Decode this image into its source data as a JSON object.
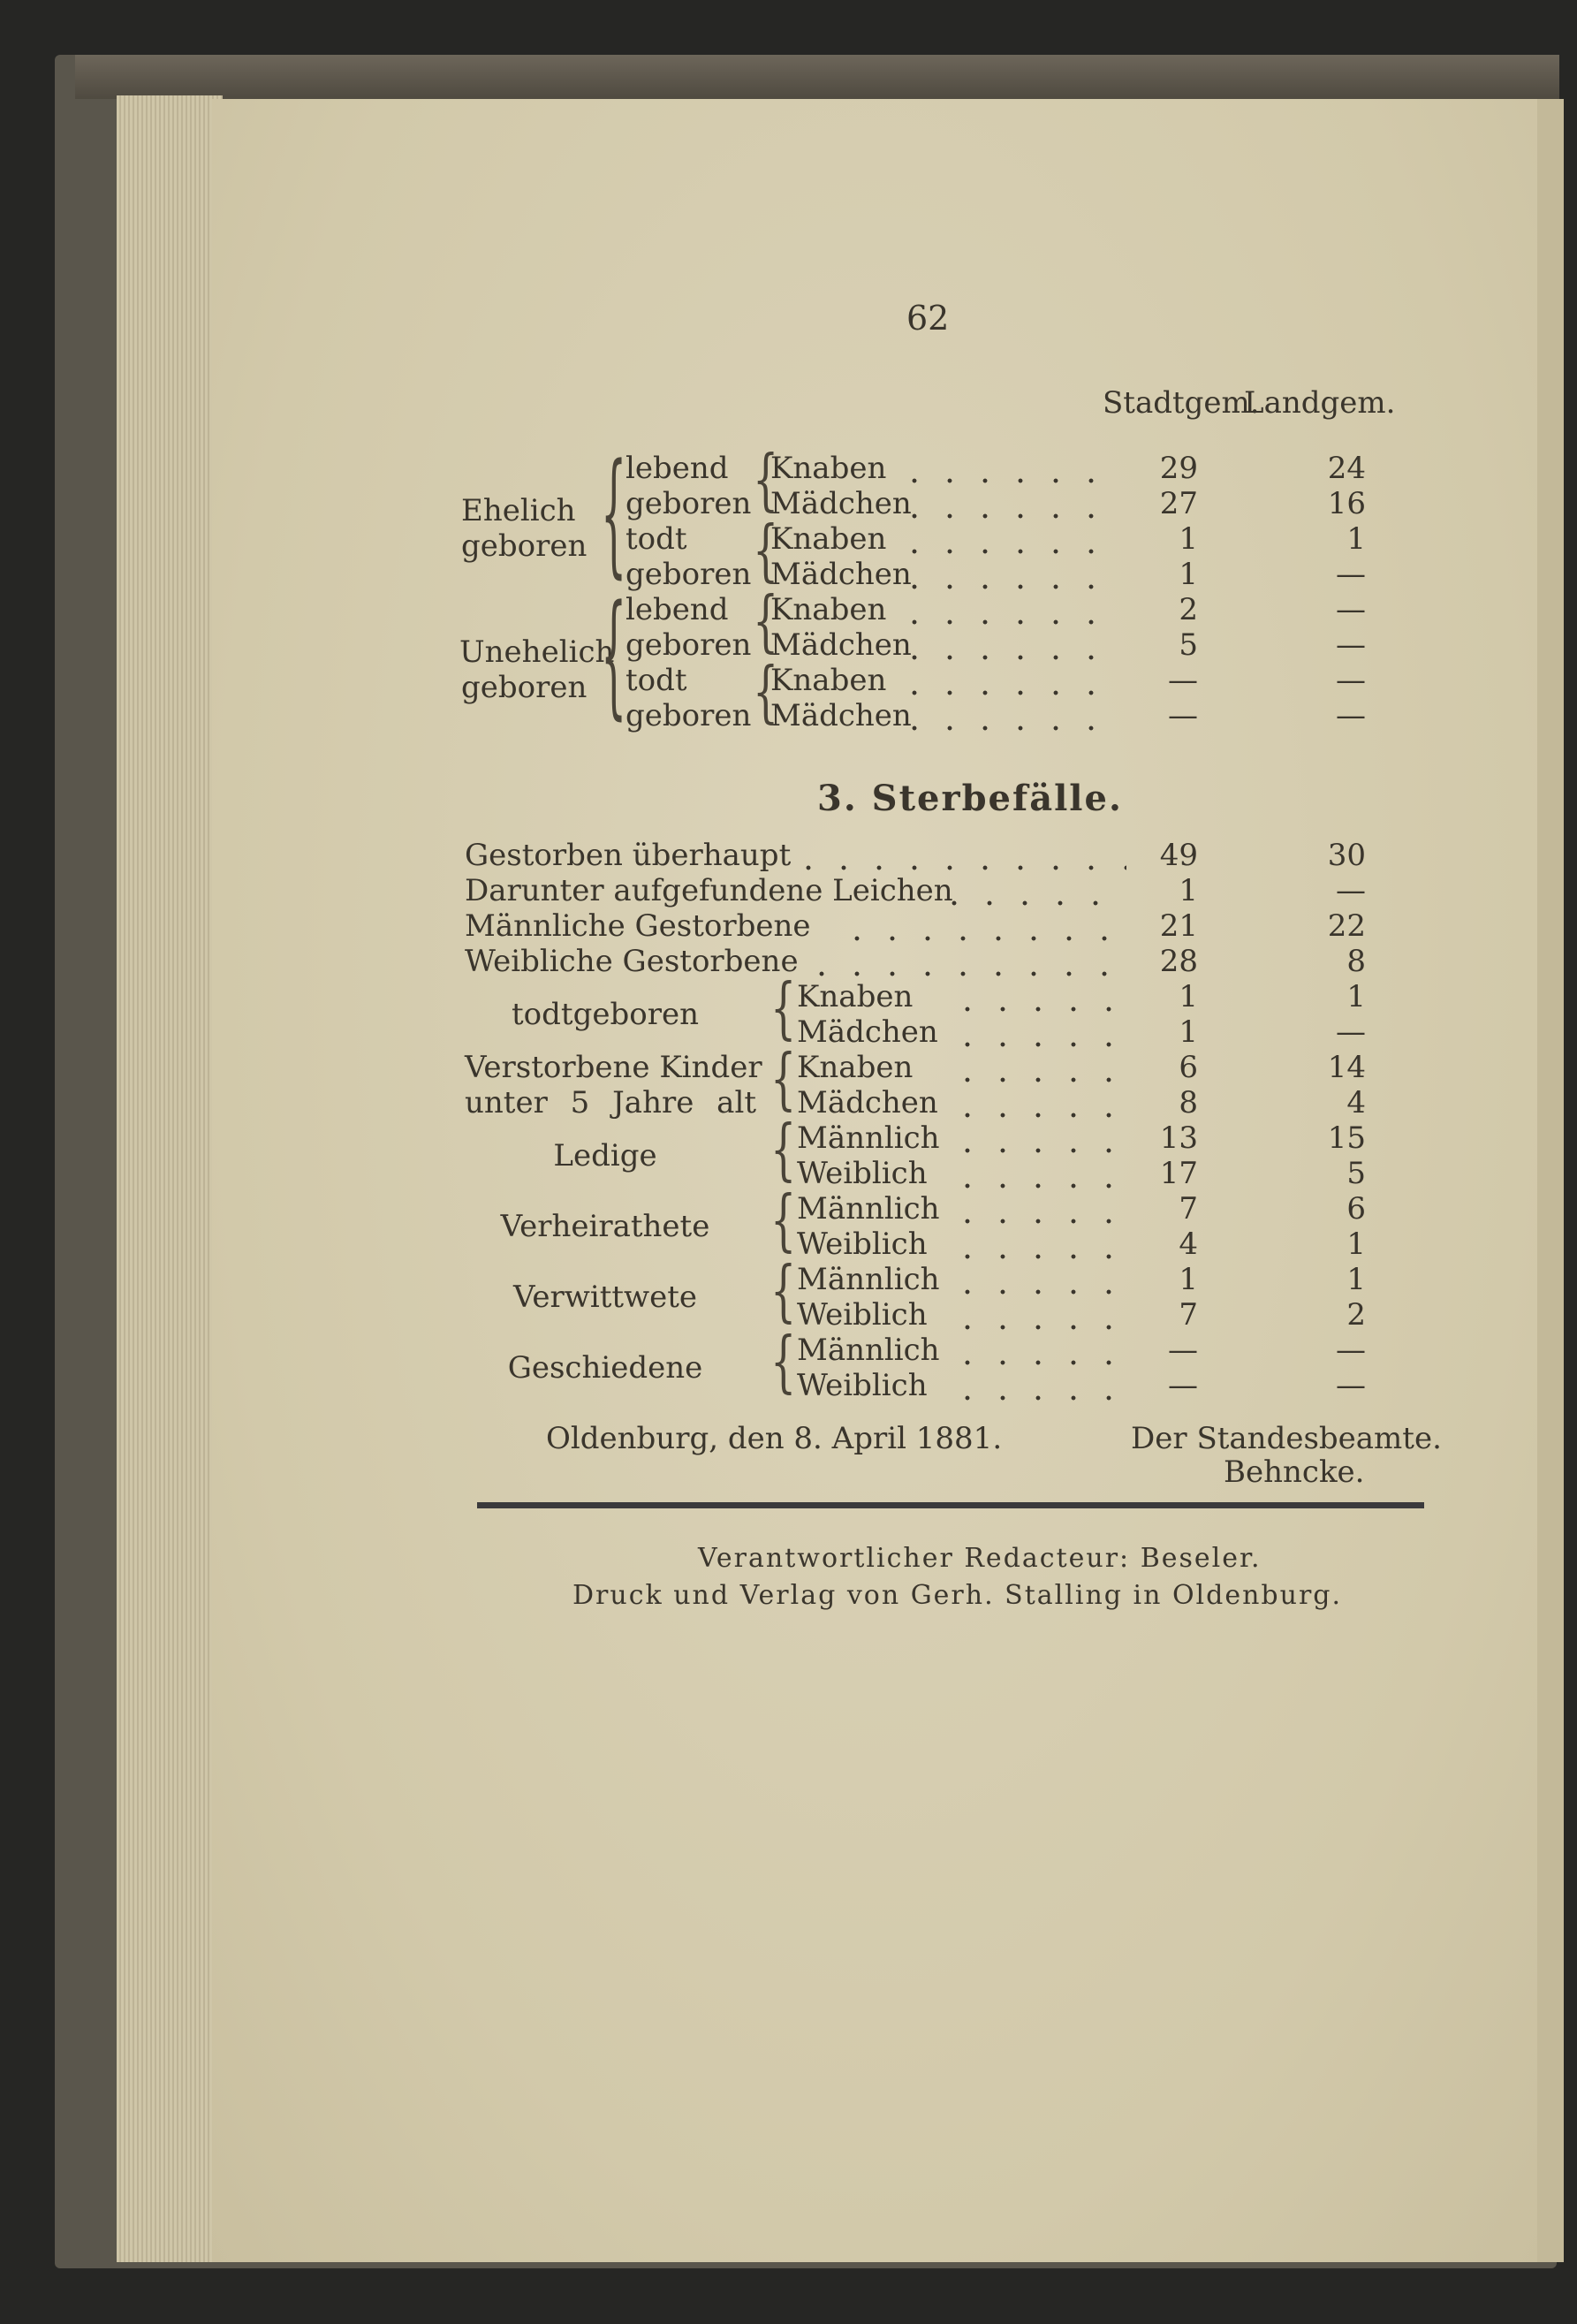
{
  "page_number": "62",
  "births": {
    "header": {
      "stadt": "Stadtgem.",
      "land": "Landgem."
    },
    "rows": [
      {
        "g1": "",
        "g2": "lebend",
        "label": "Knaben",
        "stadt": "29",
        "land": "24"
      },
      {
        "g1": "Ehelich",
        "g2": "geboren",
        "label": "Mädchen",
        "stadt": "27",
        "land": "16"
      },
      {
        "g1": "geboren",
        "g2": "todt",
        "label": "Knaben",
        "stadt": "1",
        "land": "1"
      },
      {
        "g1": "",
        "g2": "geboren",
        "label": "Mädchen",
        "stadt": "1",
        "land": "—"
      },
      {
        "g1": "",
        "g2": "lebend",
        "label": "Knaben",
        "stadt": "2",
        "land": "—"
      },
      {
        "g1": "Unehelich",
        "g2": "geboren",
        "label": "Mädchen",
        "stadt": "5",
        "land": "—"
      },
      {
        "g1": "geboren",
        "g2": "todt",
        "label": "Knaben",
        "stadt": "—",
        "land": "—"
      },
      {
        "g1": "",
        "g2": "geboren",
        "label": "Mädchen",
        "stadt": "—",
        "land": "—"
      }
    ]
  },
  "deaths": {
    "title": "3. Sterbefälle.",
    "rows": [
      {
        "label": "Gestorben überhaupt",
        "stadt": "49",
        "land": "30"
      },
      {
        "label": "Darunter aufgefundene Leichen",
        "stadt": "1",
        "land": "—"
      },
      {
        "label": "Männliche Gestorbene",
        "stadt": "21",
        "land": "22"
      },
      {
        "label": "Weibliche Gestorbene",
        "stadt": "28",
        "land": "8"
      }
    ],
    "groups": [
      {
        "label": [
          "todtgeboren"
        ],
        "rows": [
          {
            "label": "Knaben",
            "stadt": "1",
            "land": "1"
          },
          {
            "label": "Mädchen",
            "stadt": "1",
            "land": "—"
          }
        ]
      },
      {
        "label": [
          "Verstorbene Kinder",
          "unter 5 Jahre alt"
        ],
        "rows": [
          {
            "label": "Knaben",
            "stadt": "6",
            "land": "14"
          },
          {
            "label": "Mädchen",
            "stadt": "8",
            "land": "4"
          }
        ]
      },
      {
        "label": [
          "Ledige"
        ],
        "rows": [
          {
            "label": "Männlich",
            "stadt": "13",
            "land": "15"
          },
          {
            "label": "Weiblich",
            "stadt": "17",
            "land": "5"
          }
        ]
      },
      {
        "label": [
          "Verheirathete"
        ],
        "rows": [
          {
            "label": "Männlich",
            "stadt": "7",
            "land": "6"
          },
          {
            "label": "Weiblich",
            "stadt": "4",
            "land": "1"
          }
        ]
      },
      {
        "label": [
          "Verwittwete"
        ],
        "rows": [
          {
            "label": "Männlich",
            "stadt": "1",
            "land": "1"
          },
          {
            "label": "Weiblich",
            "stadt": "7",
            "land": "2"
          }
        ]
      },
      {
        "label": [
          "Geschiedene"
        ],
        "rows": [
          {
            "label": "Männlich",
            "stadt": "—",
            "land": "—"
          },
          {
            "label": "Weiblich",
            "stadt": "—",
            "land": "—"
          }
        ]
      }
    ]
  },
  "footer": {
    "place_date": "Oldenburg, den 8. April 1881.",
    "official_title": "Der Standesbeamte.",
    "official_name": "Behncke.",
    "editor": "Verantwortlicher Redacteur: Beseler.",
    "printer": "Druck und Verlag von Gerh. Stalling in Oldenburg."
  }
}
